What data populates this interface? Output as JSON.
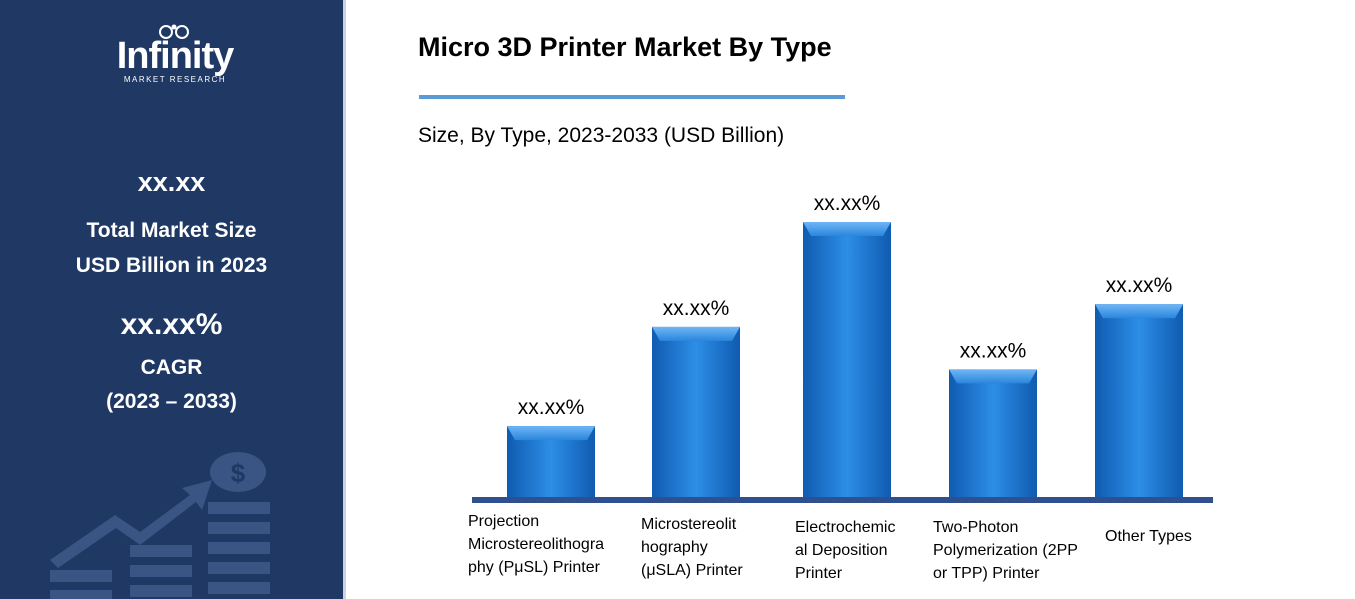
{
  "brand": {
    "name": "Infinity",
    "tagline": "MARKET RESEARCH"
  },
  "summary": {
    "market_size_value": "xx.xx",
    "market_size_label_line1": "Total Market Size",
    "market_size_label_line2": "USD Billion in 2023",
    "cagr_value": "xx.xx%",
    "cagr_label": "CAGR",
    "cagr_period": "(2023 – 2033)"
  },
  "colors": {
    "panel": "#1f3864",
    "bar": "#1f7ad6",
    "bar_dark": "#0e4f9a",
    "axis": "#2f4f8f",
    "rule": "#5b9bd5"
  },
  "icons": [
    "dollar-coin-icon",
    "growth-arrow-icon",
    "logo-deco-icon"
  ],
  "chart_data": {
    "type": "bar",
    "title": "Micro 3D Printer Market By Type",
    "subtitle": "Size, By Type, 2023-2033 (USD Billion)",
    "categories": [
      "Projection Microstereolithography (PμSL) Printer",
      "Microstereolithography (μSLA) Printer",
      "Electrochemical Deposition Printer",
      "Two-Photon Polymerization (2PP or TPP) Printer",
      "Other Types"
    ],
    "category_lines": [
      [
        "Projection",
        "Microstereolithogra",
        "phy (PμSL) Printer"
      ],
      [
        "Microstereolit",
        "hography",
        "(μSLA) Printer"
      ],
      [
        "Electrochemic",
        "al Deposition",
        "Printer"
      ],
      [
        "Two-Photon",
        "Polymerization (2PP",
        "or TPP) Printer"
      ],
      [
        "Other Types"
      ]
    ],
    "values": [
      2.5,
      6.0,
      9.7,
      4.5,
      6.8
    ],
    "data_labels": [
      "xx.xx%",
      "xx.xx%",
      "xx.xx%",
      "xx.xx%",
      "xx.xx%"
    ],
    "ylim": [
      0,
      10
    ],
    "grid": false,
    "legend": "none",
    "xlabel": "",
    "ylabel": ""
  }
}
